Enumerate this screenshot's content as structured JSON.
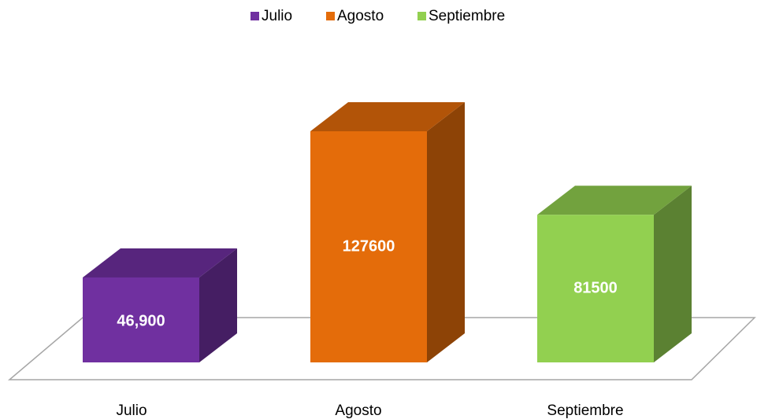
{
  "chart_data": {
    "type": "bar",
    "categories": [
      "Julio",
      "Agosto",
      "Septiembre"
    ],
    "values": [
      46900,
      127600,
      81500
    ],
    "value_labels": [
      "46,900",
      "127600",
      "81500"
    ],
    "colors": [
      "#7030a0",
      "#e46c0a",
      "#92d050"
    ],
    "legend": "top"
  }
}
